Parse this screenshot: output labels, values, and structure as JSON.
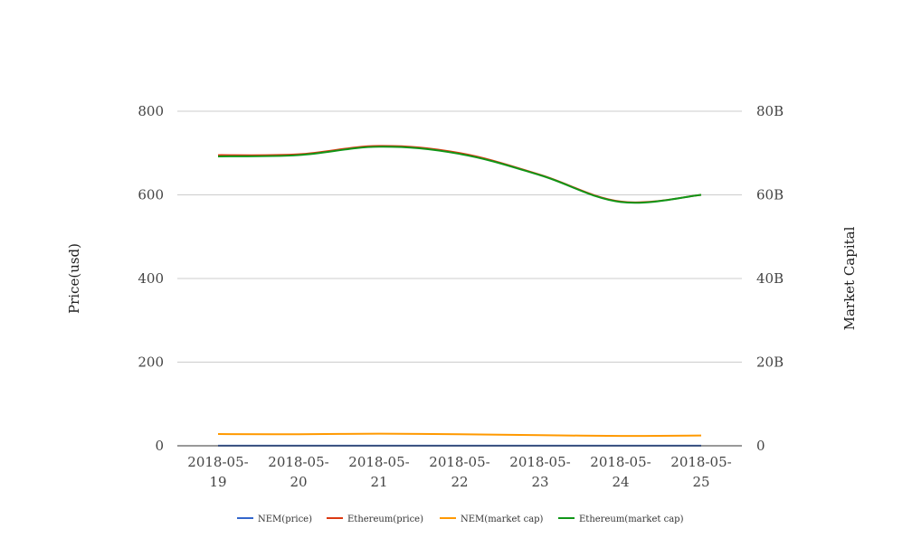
{
  "chart_data": {
    "type": "line",
    "categories": [
      [
        "2018-05-",
        "19"
      ],
      [
        "2018-05-",
        "20"
      ],
      [
        "2018-05-",
        "21"
      ],
      [
        "2018-05-",
        "22"
      ],
      [
        "2018-05-",
        "23"
      ],
      [
        "2018-05-",
        "24"
      ],
      [
        "2018-05-",
        "25"
      ]
    ],
    "y_left": {
      "label": "Price(usd)",
      "range": [
        0,
        800
      ],
      "ticks": [
        0,
        200,
        400,
        600,
        800
      ],
      "tick_labels": [
        "0",
        "200",
        "400",
        "600",
        "800"
      ]
    },
    "y_right": {
      "label": "Market Capital",
      "range": [
        0,
        80000000000
      ],
      "ticks": [
        0,
        20000000000,
        40000000000,
        60000000000,
        80000000000
      ],
      "tick_labels": [
        "0",
        "20B",
        "40B",
        "60B",
        "80B"
      ]
    },
    "grid": true,
    "legend_position": "bottom",
    "series": [
      {
        "name": "NEM(price)",
        "axis": "left",
        "color": "#3366cc",
        "values": [
          0.3,
          0.29,
          0.3,
          0.29,
          0.27,
          0.24,
          0.25
        ]
      },
      {
        "name": "Ethereum(price)",
        "axis": "left",
        "color": "#dc3912",
        "values": [
          695,
          697,
          717,
          700,
          648,
          584,
          600
        ]
      },
      {
        "name": "NEM(market cap)",
        "axis": "right",
        "color": "#ff9900",
        "values": [
          2800000000,
          2750000000,
          2900000000,
          2750000000,
          2550000000,
          2350000000,
          2450000000
        ]
      },
      {
        "name": "Ethereum(market cap)",
        "axis": "right",
        "color": "#109618",
        "values": [
          69200000000,
          69500000000,
          71500000000,
          69800000000,
          64700000000,
          58300000000,
          60000000000
        ]
      }
    ]
  }
}
